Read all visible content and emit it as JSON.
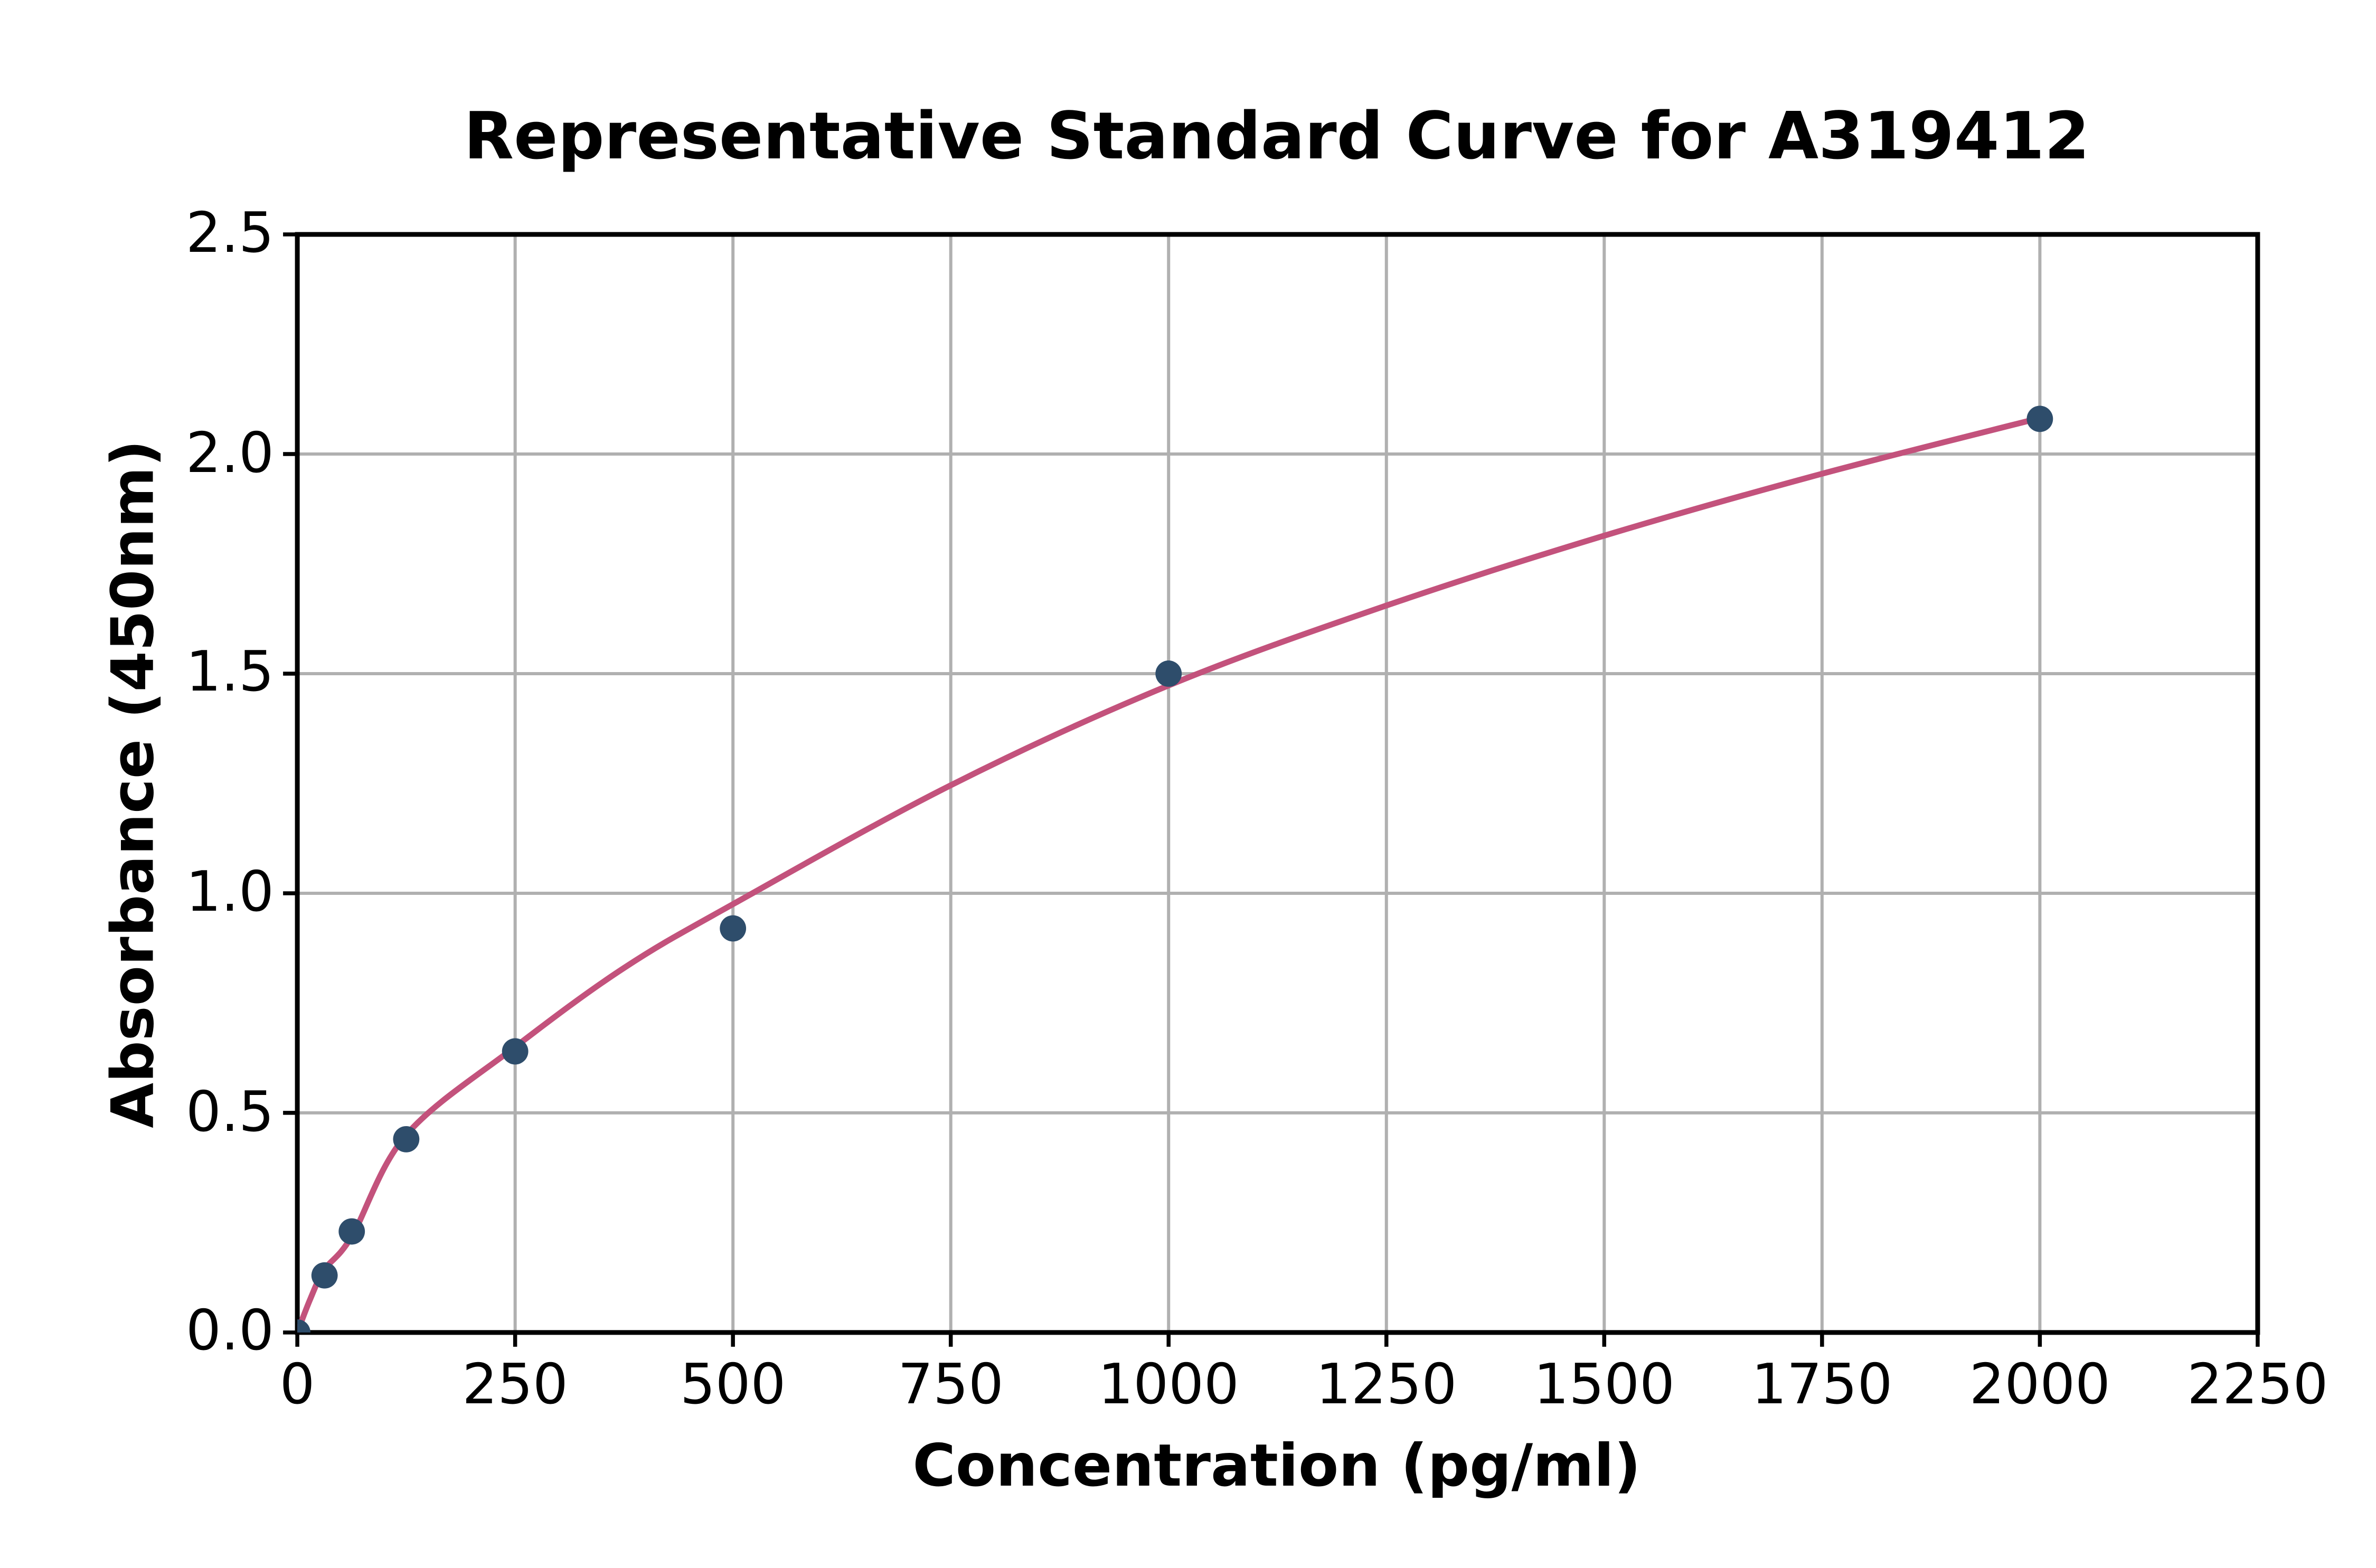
{
  "chart_data": {
    "type": "scatter",
    "title": "Representative Standard Curve for A319412",
    "xlabel": "Concentration (pg/ml)",
    "ylabel": "Absorbance (450nm)",
    "xlim": [
      0,
      2250
    ],
    "ylim": [
      0,
      2.5
    ],
    "grid": true,
    "legend_position": "none",
    "x_ticks": [
      {
        "value": 0,
        "label": "0"
      },
      {
        "value": 250,
        "label": "250"
      },
      {
        "value": 500,
        "label": "500"
      },
      {
        "value": 750,
        "label": "750"
      },
      {
        "value": 1000,
        "label": "1000"
      },
      {
        "value": 1250,
        "label": "1250"
      },
      {
        "value": 1500,
        "label": "1500"
      },
      {
        "value": 1750,
        "label": "1750"
      },
      {
        "value": 2000,
        "label": "2000"
      },
      {
        "value": 2250,
        "label": "2250"
      }
    ],
    "y_ticks": [
      {
        "value": 0,
        "label": "0.0"
      },
      {
        "value": 0.5,
        "label": "0.5"
      },
      {
        "value": 1.0,
        "label": "1.0"
      },
      {
        "value": 1.5,
        "label": "1.5"
      },
      {
        "value": 2.0,
        "label": "2.0"
      },
      {
        "value": 2.5,
        "label": "2.5"
      }
    ],
    "series": [
      {
        "name": "standard-points",
        "kind": "scatter",
        "color": "#2e4d6b",
        "points": [
          [
            0,
            0.0
          ],
          [
            31.25,
            0.13
          ],
          [
            62.5,
            0.23
          ],
          [
            125,
            0.44
          ],
          [
            250,
            0.64
          ],
          [
            500,
            0.92
          ],
          [
            1000,
            1.5
          ],
          [
            2000,
            2.08
          ]
        ]
      },
      {
        "name": "fitted-curve",
        "kind": "line",
        "color": "#c3527c",
        "points": [
          [
            0,
            0
          ],
          [
            15,
            0.077
          ],
          [
            31.25,
            0.143
          ],
          [
            62.5,
            0.219
          ],
          [
            125,
            0.45
          ],
          [
            250,
            0.65
          ],
          [
            375,
            0.83
          ],
          [
            500,
            0.975
          ],
          [
            750,
            1.246
          ],
          [
            1000,
            1.473
          ],
          [
            1250,
            1.655
          ],
          [
            1500,
            1.814
          ],
          [
            1750,
            1.955
          ],
          [
            2000,
            2.082
          ]
        ]
      }
    ],
    "colors": {
      "grid": "#b0b0b0",
      "axis": "#000000",
      "background": "#ffffff"
    }
  }
}
